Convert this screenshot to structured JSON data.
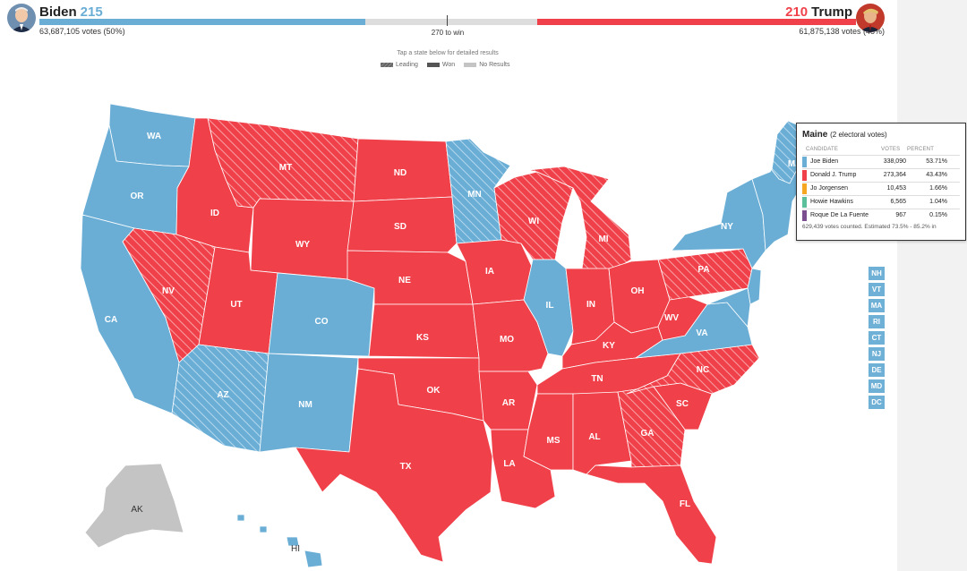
{
  "header": {
    "biden": {
      "name": "Biden",
      "ev": "215",
      "votes": "63,687,105 votes (50%)",
      "color": "#6aaed6"
    },
    "trump": {
      "name": "Trump",
      "ev": "210",
      "votes": "61,875,138 votes (48%)",
      "color": "#f0414a"
    },
    "win_label": "270 to win",
    "biden_ev_number": 215,
    "trump_ev_number": 210,
    "total_ev": 538
  },
  "hint": "Tap a state below for detailed results",
  "legend": [
    {
      "label": "Leading"
    },
    {
      "label": "Won"
    },
    {
      "label": "No Results"
    }
  ],
  "colors": {
    "dem": "#6aaed6",
    "rep": "#f0414a",
    "no_results": "#c4c4c4",
    "lib": "#f5a623",
    "green": "#5bbf9c",
    "other": "#7b4f8f"
  },
  "states": {
    "WA": "WA",
    "OR": "OR",
    "CA": "CA",
    "ID": "ID",
    "NV": "NV",
    "MT": "MT",
    "WY": "WY",
    "UT": "UT",
    "AZ": "AZ",
    "CO": "CO",
    "NM": "NM",
    "ND": "ND",
    "SD": "SD",
    "NE": "NE",
    "KS": "KS",
    "OK": "OK",
    "TX": "TX",
    "MN": "MN",
    "IA": "IA",
    "MO": "MO",
    "AR": "AR",
    "LA": "LA",
    "WI": "WI",
    "IL": "IL",
    "MI": "MI",
    "IN": "IN",
    "OH": "OH",
    "KY": "KY",
    "TN": "TN",
    "MS": "MS",
    "AL": "AL",
    "GA": "GA",
    "FL": "FL",
    "SC": "SC",
    "NC": "NC",
    "VA": "VA",
    "WV": "WV",
    "PA": "PA",
    "NY": "NY",
    "AK": "AK",
    "HI": "HI",
    "ME": "M"
  },
  "small_states": [
    "NH",
    "VT",
    "MA",
    "RI",
    "CT",
    "NJ",
    "DE",
    "MD",
    "DC"
  ],
  "popup": {
    "state": "Maine",
    "ev_text": "(2 electoral votes)",
    "col_candidate": "CANDIDATE",
    "col_votes": "VOTES",
    "col_percent": "PERCENT",
    "rows": [
      {
        "name": "Joe Biden",
        "votes": "338,090",
        "pct": "53.71%"
      },
      {
        "name": "Donald J. Trump",
        "votes": "273,364",
        "pct": "43.43%"
      },
      {
        "name": "Jo Jorgensen",
        "votes": "10,453",
        "pct": "1.66%"
      },
      {
        "name": "Howie Hawkins",
        "votes": "6,565",
        "pct": "1.04%"
      },
      {
        "name": "Roque De La Fuente",
        "votes": "967",
        "pct": "0.15%"
      }
    ],
    "footer": "629,439 votes counted. Estimated 73.5% - 85.2% in"
  }
}
